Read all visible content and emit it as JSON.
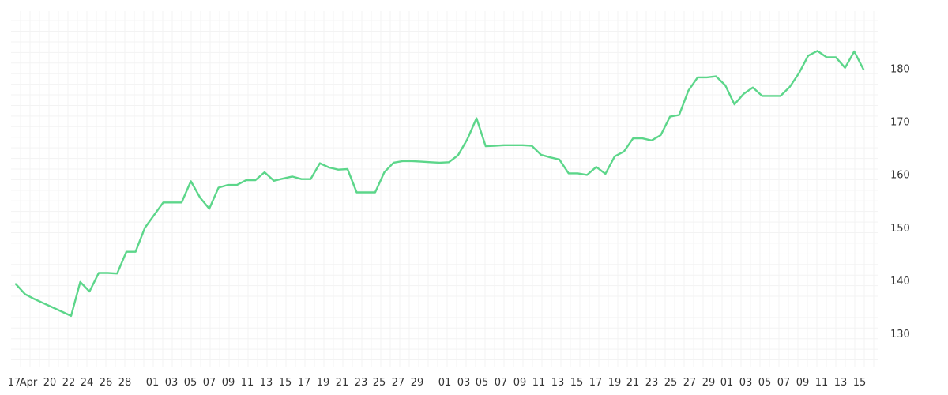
{
  "chart_data": {
    "type": "line",
    "title": "",
    "xlabel": "",
    "ylabel": "",
    "x_tick_labels": [
      "17",
      "Apr",
      "20",
      "22",
      "24",
      "26",
      "28",
      "01",
      "03",
      "05",
      "07",
      "09",
      "11",
      "13",
      "15",
      "17",
      "19",
      "21",
      "23",
      "25",
      "27",
      "29",
      "01",
      "03",
      "05",
      "07",
      "09",
      "11",
      "13",
      "15",
      "17",
      "19",
      "21",
      "23",
      "25",
      "27",
      "29",
      "01",
      "03",
      "05",
      "07",
      "09",
      "11",
      "13",
      "15"
    ],
    "y_ticks": [
      130,
      140,
      150,
      160,
      170,
      180
    ],
    "ylim": [
      124.5,
      190.5
    ],
    "grid": true,
    "series": [
      {
        "color": "#5cd68a",
        "values": [
          139.3,
          137.4,
          136.5,
          135.7,
          134.9,
          134.1,
          133.3,
          139.7,
          137.9,
          141.4,
          141.4,
          141.3,
          145.4,
          145.4,
          149.9,
          152.3,
          154.7,
          154.7,
          154.7,
          158.7,
          155.6,
          153.5,
          157.5,
          158.0,
          158.0,
          158.9,
          158.9,
          160.4,
          158.8,
          159.2,
          159.6,
          159.1,
          159.1,
          162.1,
          161.3,
          160.9,
          161.0,
          156.6,
          156.6,
          156.6,
          160.4,
          162.2,
          162.5,
          162.5,
          162.4,
          162.3,
          162.2,
          162.3,
          163.6,
          166.6,
          170.6,
          165.3,
          165.4,
          165.5,
          165.5,
          165.5,
          165.4,
          163.7,
          163.2,
          162.8,
          160.2,
          160.2,
          159.9,
          161.4,
          160.1,
          163.4,
          164.3,
          166.8,
          166.8,
          166.4,
          167.4,
          170.9,
          171.2,
          175.8,
          178.3,
          178.3,
          178.5,
          176.8,
          173.2,
          175.2,
          176.4,
          174.8,
          174.8,
          174.8,
          176.5,
          179.1,
          182.4,
          183.3,
          182.1,
          182.1,
          180.1,
          183.2,
          179.8
        ]
      }
    ]
  }
}
